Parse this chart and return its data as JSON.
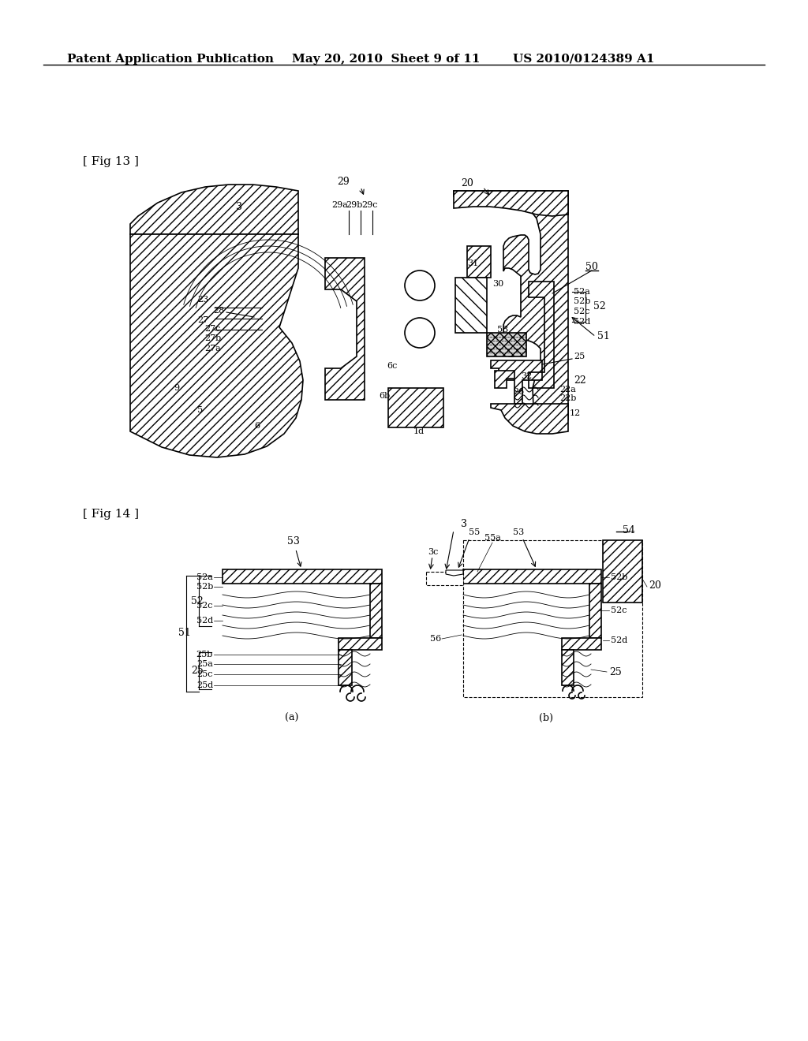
{
  "bg_color": "#ffffff",
  "header_text": "Patent Application Publication",
  "header_date": "May 20, 2010  Sheet 9 of 11",
  "header_patent": "US 2010/0124389 A1",
  "fig13_label": "[ Fig 13 ]",
  "fig14_label": "[ Fig 14 ]",
  "title_fontsize": 11,
  "label_fontsize": 9,
  "small_fontsize": 8
}
